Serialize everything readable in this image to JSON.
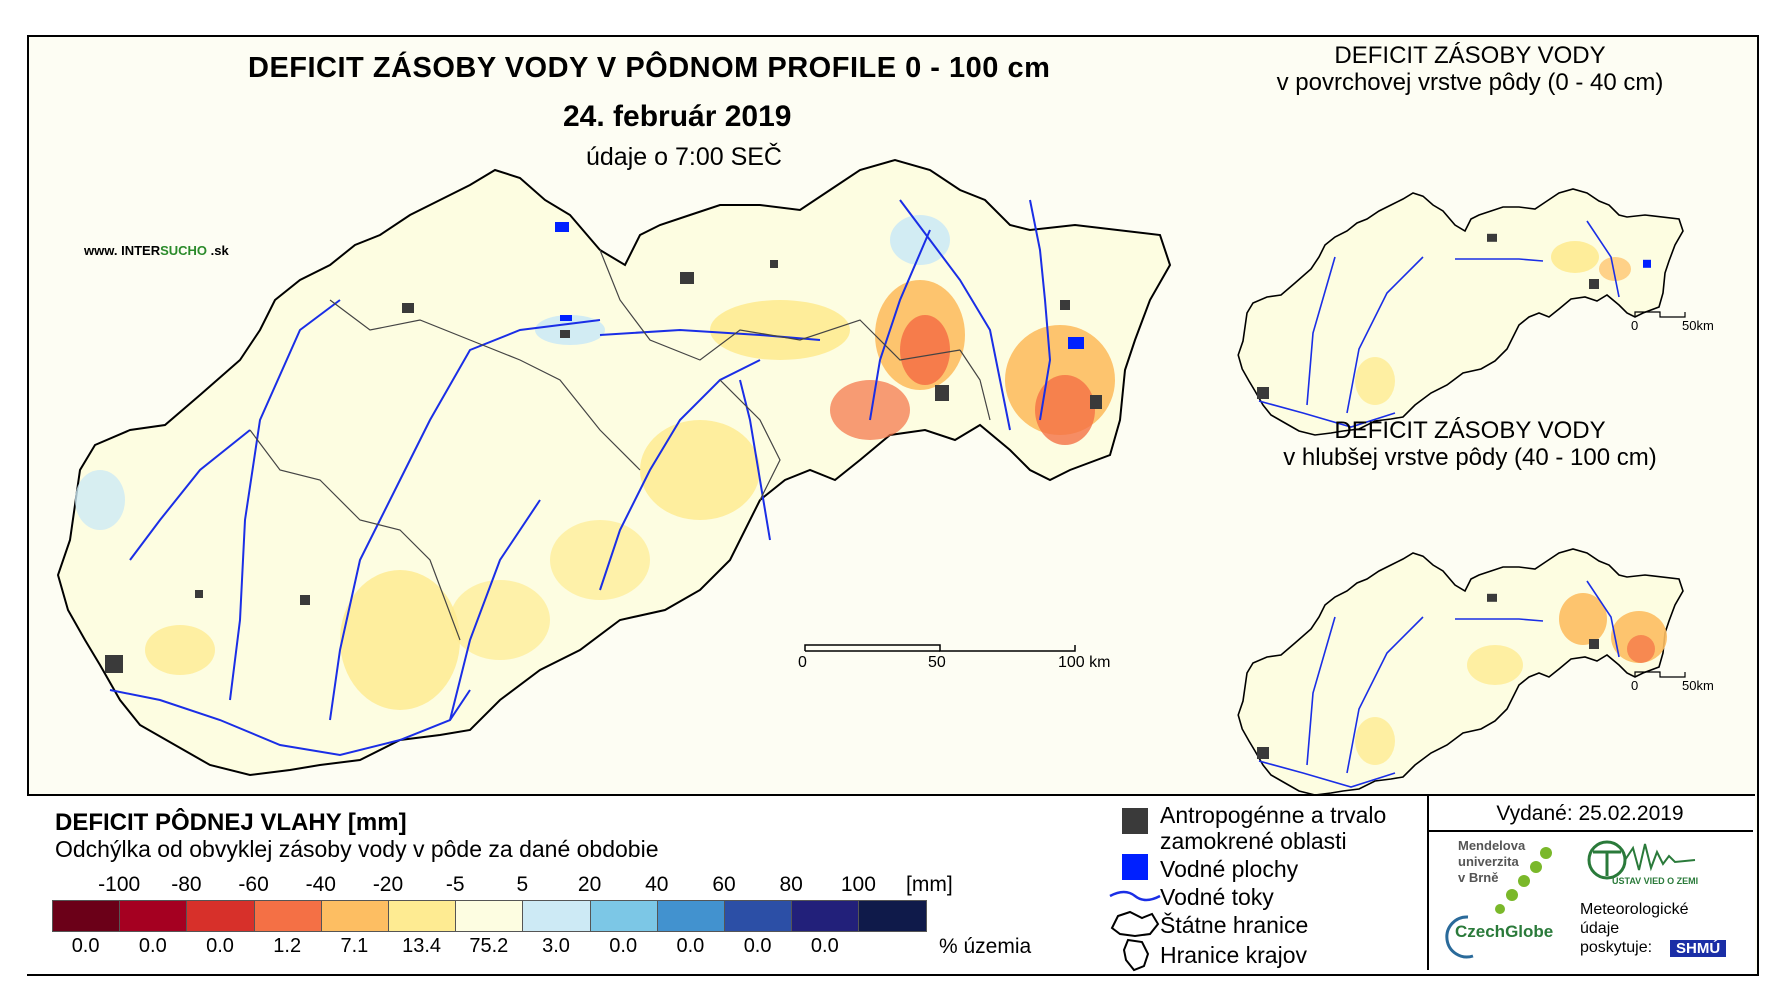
{
  "main_map": {
    "title": "DEFICIT ZÁSOBY VODY V PÔDNOM PROFILE 0 - 100 cm",
    "date": "24. február 2019",
    "time": "údaje o 7:00 SEČ",
    "website": {
      "prefix": "www.",
      "brand_a": "INTER",
      "brand_b": "SUCHO",
      "suffix": ".sk"
    },
    "scale": {
      "labels": [
        "0",
        "50",
        "100 km"
      ]
    }
  },
  "side_maps": [
    {
      "title_line1": "DEFICIT ZÁSOBY VODY",
      "title_line2": "v povrchovej vrstve pôdy (0 - 40 cm)",
      "scale": [
        "0",
        "50km"
      ]
    },
    {
      "title_line1": "DEFICIT ZÁSOBY VODY",
      "title_line2": "v hlubšej vrstve pôdy (40 - 100 cm)",
      "scale": [
        "0",
        "50km"
      ]
    }
  ],
  "legend": {
    "title": "DEFICIT PÔDNEJ VLAHY [mm]",
    "subtitle": "Odchýlka od obvyklej zásoby vody v pôde za dané obdobie",
    "unit": "[mm]",
    "percent_label": "% územia",
    "ticks": [
      "-100",
      "-80",
      "-60",
      "-40",
      "-20",
      "-5",
      "5",
      "20",
      "40",
      "60",
      "80",
      "100"
    ],
    "classes": [
      {
        "color": "#6b0018",
        "percent": "0.0"
      },
      {
        "color": "#a50021",
        "percent": "0.0"
      },
      {
        "color": "#d7302a",
        "percent": "0.0"
      },
      {
        "color": "#f47045",
        "percent": "1.2"
      },
      {
        "color": "#fdbe62",
        "percent": "7.1"
      },
      {
        "color": "#feeb92",
        "percent": "13.4"
      },
      {
        "color": "#fdfde1",
        "percent": "75.2"
      },
      {
        "color": "#cdeaf5",
        "percent": "3.0"
      },
      {
        "color": "#7cc7e6",
        "percent": "0.0"
      },
      {
        "color": "#4292cf",
        "percent": "0.0"
      },
      {
        "color": "#2c4fa6",
        "percent": "0.0"
      },
      {
        "color": "#22207a",
        "percent": "0.0"
      },
      {
        "color": "#0f1a4a",
        "percent": ""
      }
    ]
  },
  "symbols": {
    "anthropogenic": "Antropogénne a trvalo",
    "anthropogenic_line2": "zamokrené oblasti",
    "water_bodies": "Vodné plochy",
    "streams": "Vodné toky",
    "state_borders": "Štátne hranice",
    "region_borders": "Hranice krajov"
  },
  "credits": {
    "issued": "Vydané: 25.02.2019",
    "mendel": [
      "Mendelova",
      "univerzita",
      "v Brně"
    ],
    "czechglobe": "CzechGlobe",
    "ustav": "ÚSTAV VIED O ZEMI",
    "meteo": [
      "Meteorologické",
      "údaje",
      "poskytuje:"
    ],
    "shmu": "SHMÚ"
  },
  "colors": {
    "stream": "#1a2ee6",
    "water": "#0020ff",
    "urban": "#3a3a3a",
    "deficit_low": "#feeb92",
    "deficit_mid": "#fdbe62",
    "deficit_high": "#f47045"
  }
}
